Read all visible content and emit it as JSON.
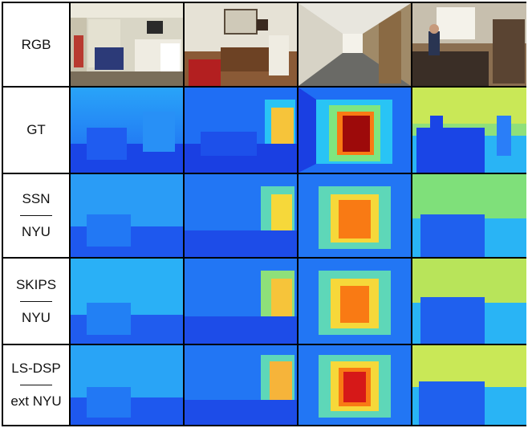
{
  "rows": [
    {
      "label_top": "RGB",
      "label_bottom": ""
    },
    {
      "label_top": "GT",
      "label_bottom": ""
    },
    {
      "label_top": "SSN",
      "label_bottom": "NYU"
    },
    {
      "label_top": "SKIPS",
      "label_bottom": "NYU"
    },
    {
      "label_top": "LS-DSP",
      "label_bottom": "ext NYU"
    }
  ],
  "colormap": {
    "near": "#1a2fe0",
    "mid_blue": "#1f7dfd",
    "cyan": "#29c4f5",
    "green": "#7fe67f",
    "yellow": "#f6e63a",
    "orange": "#f97a14",
    "red": "#d61818",
    "far": "#9d0a0a"
  }
}
